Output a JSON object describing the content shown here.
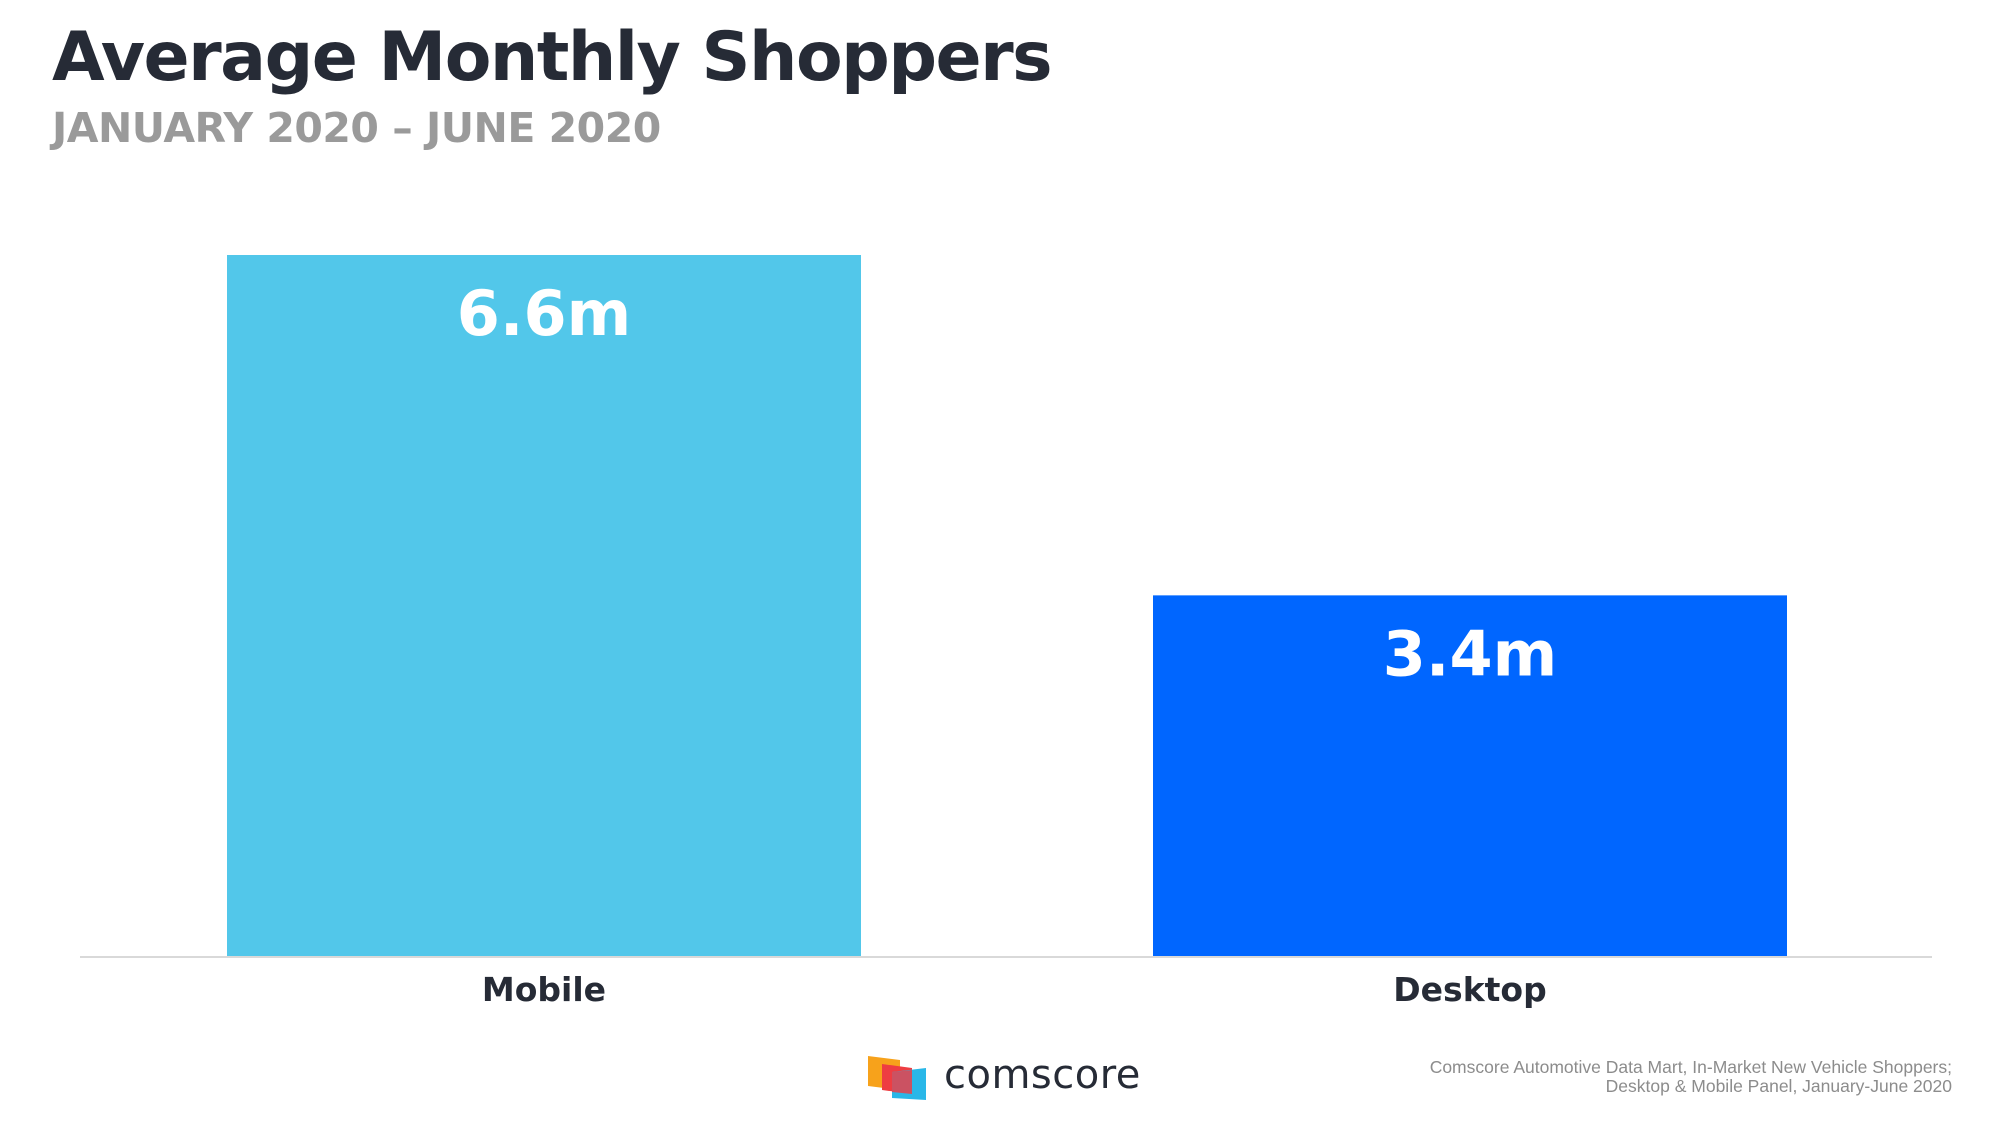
{
  "header": {
    "title": "Average Monthly Shoppers",
    "subtitle": "JANUARY 2020 – JUNE 2020"
  },
  "chart_data": {
    "type": "bar",
    "categories": [
      "Mobile",
      "Desktop"
    ],
    "values": [
      6.6,
      3.4
    ],
    "value_labels": [
      "6.6m",
      "3.4m"
    ],
    "colors": [
      "#52c7ea",
      "#0066ff"
    ],
    "ylim": [
      0,
      6.6
    ],
    "grid": false,
    "legend": "none"
  },
  "footer": {
    "brand": "comscore",
    "logo_icon": "comscore-logo-icon",
    "source_lines": [
      "Comscore Automotive Data Mart, In-Market New Vehicle Shoppers;",
      "Desktop & Mobile Panel, January-June 2020"
    ]
  }
}
